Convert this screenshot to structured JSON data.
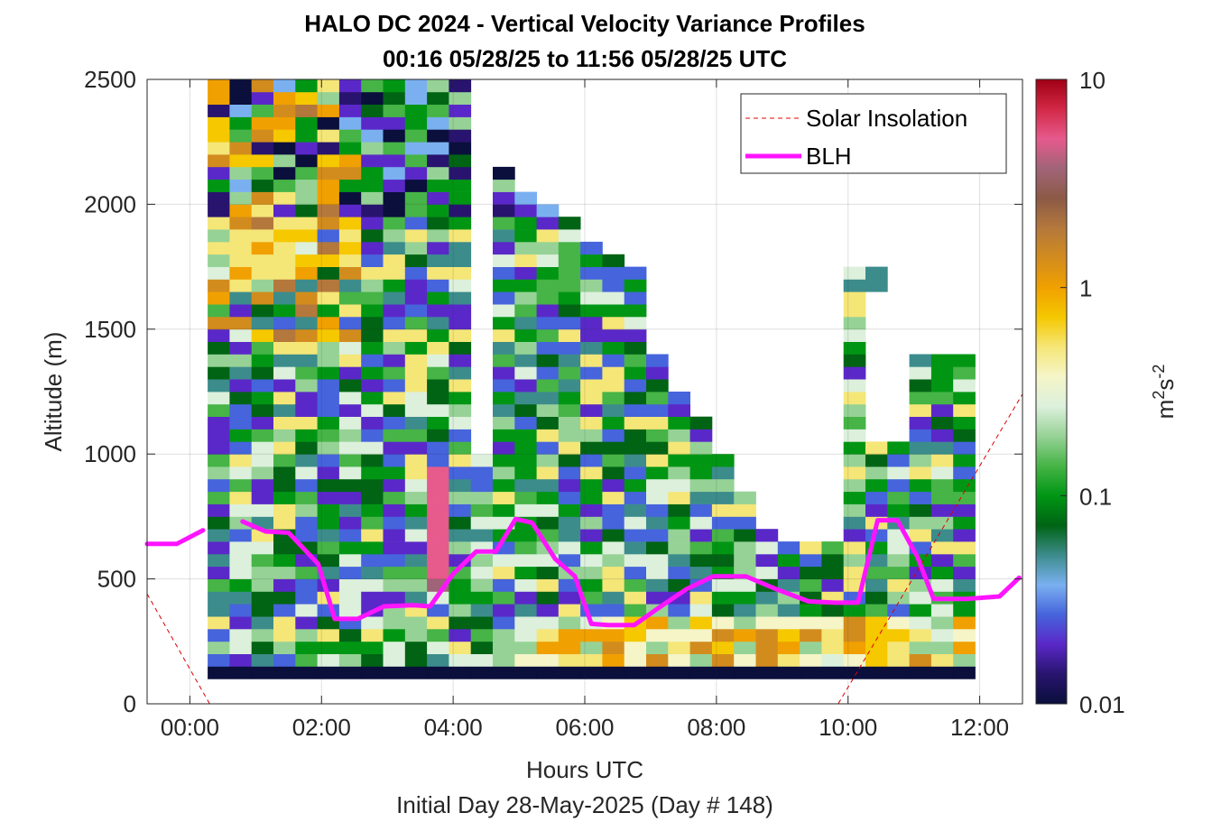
{
  "chart_data": {
    "type": "heatmap",
    "title": "HALO DC 2024 - Vertical Velocity Variance Profiles",
    "subtitle": "00:16 05/28/25 to 11:56 05/28/25  UTC",
    "xlabel": "Hours UTC",
    "footnote": "Initial Day 28-May-2025 (Day # 148)",
    "ylabel": "Altitude (m)",
    "colorbar_label_base": "m",
    "colorbar_label_exp1": "2",
    "colorbar_label_mid": "s",
    "colorbar_label_exp2": "-2",
    "xlim_hours": [
      -0.65,
      12.65
    ],
    "ylim": [
      0,
      2500
    ],
    "x_ticks": [
      {
        "v": 0,
        "label": "00:00"
      },
      {
        "v": 2,
        "label": "02:00"
      },
      {
        "v": 4,
        "label": "04:00"
      },
      {
        "v": 6,
        "label": "06:00"
      },
      {
        "v": 8,
        "label": "08:00"
      },
      {
        "v": 10,
        "label": "10:00"
      },
      {
        "v": 12,
        "label": "12:00"
      }
    ],
    "y_ticks": [
      {
        "v": 0,
        "label": "0"
      },
      {
        "v": 500,
        "label": "500"
      },
      {
        "v": 1000,
        "label": "1000"
      },
      {
        "v": 1500,
        "label": "1500"
      },
      {
        "v": 2000,
        "label": "2000"
      },
      {
        "v": 2500,
        "label": "2500"
      }
    ],
    "colorbar": {
      "scale": "log",
      "range": [
        0.01,
        10
      ],
      "ticks": [
        {
          "v": 0.01,
          "label": "0.01"
        },
        {
          "v": 0.1,
          "label": "0.1"
        },
        {
          "v": 1,
          "label": "1"
        },
        {
          "v": 10,
          "label": "10"
        }
      ],
      "colors": [
        "#0a0f3c",
        "#28146e",
        "#5a28c8",
        "#4664dc",
        "#7ab0f0",
        "#3c8c8c",
        "#006414",
        "#009614",
        "#46b446",
        "#96d296",
        "#dcf0dc",
        "#f5f5c8",
        "#f5e678",
        "#f5c800",
        "#f0a000",
        "#d28c1e",
        "#b4783c",
        "#8c5a46",
        "#a06478",
        "#e65a8c",
        "#d22846",
        "#a00014"
      ]
    },
    "grid": true,
    "legend": {
      "position": "top-right",
      "entries": [
        {
          "label": "Solar Insolation",
          "color": "#dc0000",
          "style": "dashed"
        },
        {
          "label": "BLH",
          "color": "#ff14ff",
          "style": "solid"
        }
      ]
    },
    "blh_series": {
      "name": "BLH",
      "x_hours": [
        -0.65,
        -0.5,
        -0.2,
        0.2,
        0.52,
        0.8,
        1.15,
        1.5,
        1.95,
        2.2,
        2.55,
        2.95,
        3.4,
        3.65,
        4.0,
        4.35,
        4.65,
        4.95,
        5.2,
        5.55,
        5.85,
        6.1,
        6.35,
        6.75,
        7.1,
        7.55,
        7.95,
        8.45,
        8.9,
        9.4,
        9.8,
        10.15,
        10.45,
        10.75,
        11.05,
        11.3,
        11.8,
        12.3,
        12.6
      ],
      "blh_m": [
        640,
        640,
        640,
        695,
        null,
        730,
        690,
        685,
        560,
        340,
        340,
        390,
        395,
        390,
        520,
        610,
        610,
        740,
        725,
        580,
        510,
        320,
        315,
        315,
        380,
        460,
        510,
        510,
        460,
        410,
        405,
        405,
        735,
        735,
        590,
        420,
        420,
        430,
        505
      ]
    },
    "solar_insolation": {
      "name": "Solar Insolation",
      "x_hours": [
        -0.65,
        0.3,
        9.85,
        12.65
      ],
      "value_m": [
        440,
        0,
        0,
        1240
      ]
    },
    "heatmap": {
      "value": "vertical velocity variance",
      "units": "m^2 s^-2",
      "x_range_hours": [
        0.27,
        11.93
      ],
      "altitude_range_m": [
        100,
        2500
      ],
      "bin_height_m": 50,
      "note": "profile columns ~0.33 h wide; data-free gaps shown white"
    }
  }
}
